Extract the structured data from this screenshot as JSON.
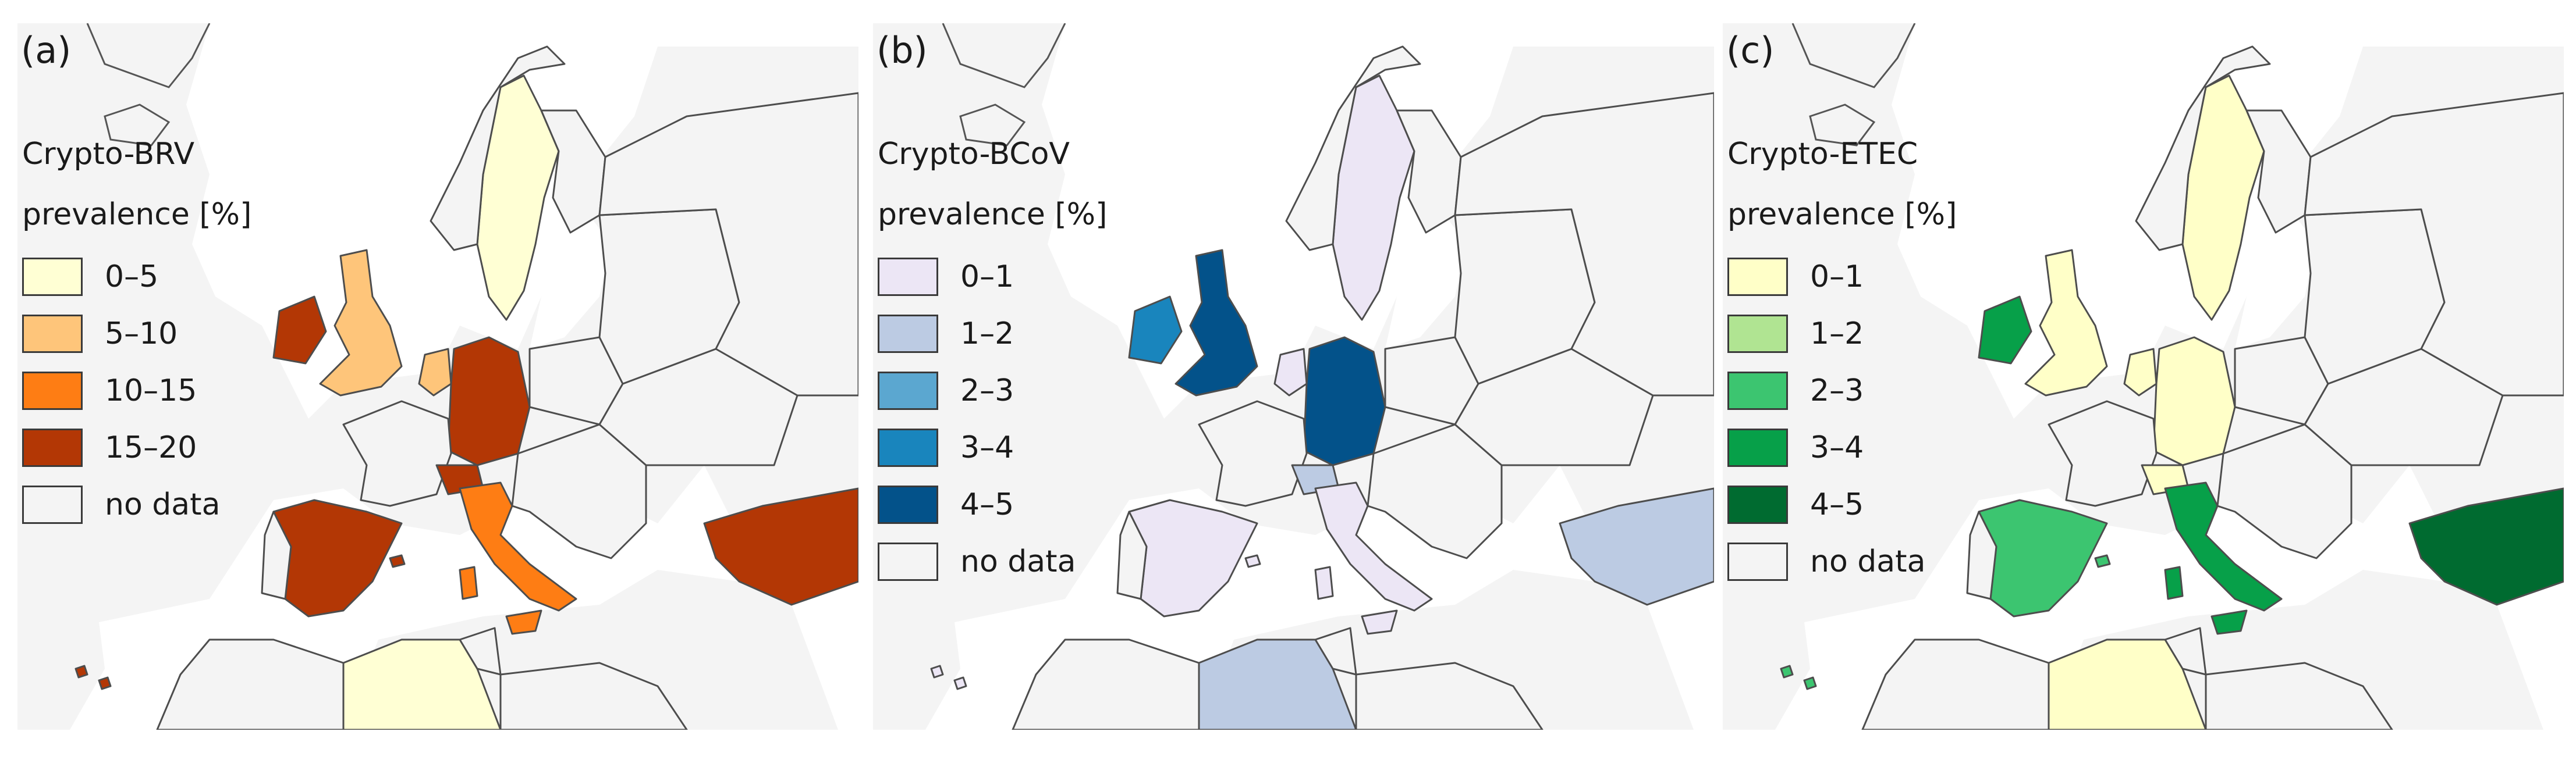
{
  "panels": [
    {
      "label": "(a)",
      "title": "Crypto-BRV",
      "subtitle": "prevalence [%]",
      "legend": [
        {
          "label": "0–5",
          "color": "#ffffd4"
        },
        {
          "label": "5–10",
          "color": "#fec57a"
        },
        {
          "label": "10–15",
          "color": "#fe7d14"
        },
        {
          "label": "15–20",
          "color": "#b33705"
        },
        {
          "label": "no data",
          "color": "#f4f4f4"
        }
      ],
      "countries": {
        "ireland": "15–20",
        "uk": "5–10",
        "netherlands": "5–10",
        "germany": "15–20",
        "switzerland": "15–20",
        "italy": "10–15",
        "spain": "15–20",
        "turkey": "15–20",
        "sweden": "0–5",
        "algeria": "0–5"
      }
    },
    {
      "label": "(b)",
      "title": "Crypto-BCoV",
      "subtitle": "prevalence [%]",
      "legend": [
        {
          "label": "0–1",
          "color": "#ece6f5"
        },
        {
          "label": "1–2",
          "color": "#bccbe3"
        },
        {
          "label": "2–3",
          "color": "#5ba7d0"
        },
        {
          "label": "3–4",
          "color": "#1985bd"
        },
        {
          "label": "4–5",
          "color": "#03528a"
        },
        {
          "label": "no data",
          "color": "#f4f4f4"
        }
      ],
      "countries": {
        "ireland": "3–4",
        "uk": "4–5",
        "netherlands": "0–1",
        "germany": "4–5",
        "switzerland": "1–2",
        "italy": "0–1",
        "spain": "0–1",
        "turkey": "1–2",
        "sweden": "0–1",
        "algeria": "1–2"
      }
    },
    {
      "label": "(c)",
      "title": "Crypto-ETEC",
      "subtitle": "prevalence [%]",
      "legend": [
        {
          "label": "0–1",
          "color": "#ffffc8"
        },
        {
          "label": "1–2",
          "color": "#b0e492"
        },
        {
          "label": "2–3",
          "color": "#3cc570"
        },
        {
          "label": "3–4",
          "color": "#07a049"
        },
        {
          "label": "4–5",
          "color": "#006b30"
        },
        {
          "label": "no data",
          "color": "#f4f4f4"
        }
      ],
      "countries": {
        "ireland": "3–4",
        "uk": "0–1",
        "netherlands": "0–1",
        "germany": "0–1",
        "switzerland": "0–1",
        "italy": "3–4",
        "spain": "2–3",
        "turkey": "4–5",
        "sweden": "0–1",
        "algeria": "0–1"
      }
    }
  ]
}
